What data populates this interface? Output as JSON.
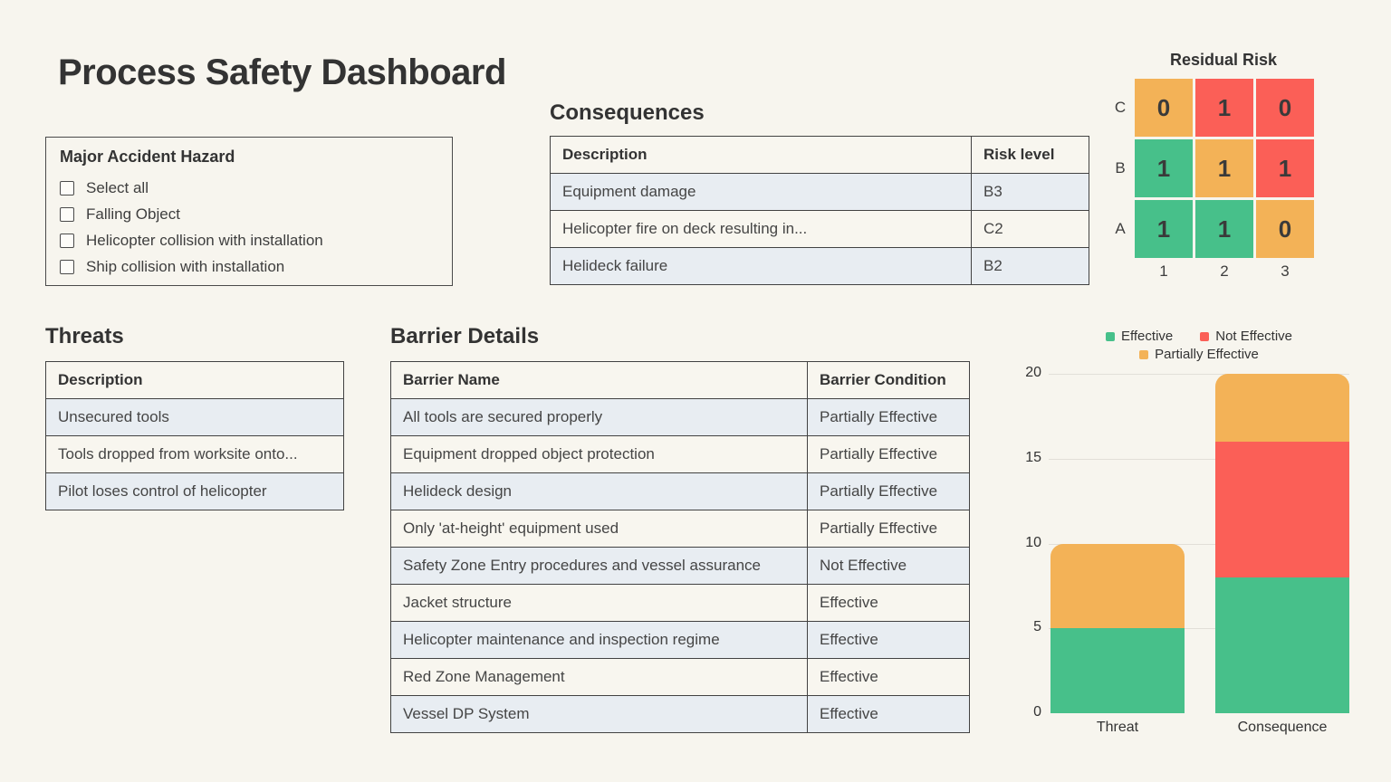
{
  "page": {
    "title": "Process Safety Dashboard"
  },
  "colors": {
    "green": "#47C08A",
    "red": "#FB5F57",
    "orange": "#F3B257",
    "alt_row": "#E8EDF2",
    "background": "#F7F5EE",
    "border": "#424242"
  },
  "hazard_panel": {
    "title": "Major Accident Hazard",
    "options": [
      "Select all",
      "Falling Object",
      "Helicopter collision with installation",
      "Ship collision with installation"
    ],
    "checked": [
      false,
      false,
      false,
      false
    ]
  },
  "consequences": {
    "title": "Consequences",
    "columns": [
      "Description",
      "Risk level"
    ],
    "rows": [
      [
        "Equipment damage",
        "B3"
      ],
      [
        "Helicopter fire on deck resulting in...",
        "C2"
      ],
      [
        "Helideck failure",
        "B2"
      ]
    ]
  },
  "threats": {
    "title": "Threats",
    "columns": [
      "Description"
    ],
    "rows": [
      [
        "Unsecured tools"
      ],
      [
        "Tools dropped from worksite onto..."
      ],
      [
        "Pilot loses control of helicopter"
      ]
    ]
  },
  "barriers": {
    "title": "Barrier Details",
    "columns": [
      "Barrier Name",
      "Barrier Condition"
    ],
    "rows": [
      [
        "All tools are secured properly",
        "Partially Effective"
      ],
      [
        "Equipment dropped object protection",
        "Partially Effective"
      ],
      [
        "Helideck design",
        "Partially Effective"
      ],
      [
        "Only 'at-height' equipment used",
        "Partially Effective"
      ],
      [
        "Safety Zone Entry procedures and vessel assurance",
        "Not Effective"
      ],
      [
        "Jacket structure",
        "Effective"
      ],
      [
        "Helicopter maintenance and inspection regime",
        "Effective"
      ],
      [
        "Red Zone Management",
        "Effective"
      ],
      [
        "Vessel DP System",
        "Effective"
      ]
    ]
  },
  "chart_data": [
    {
      "type": "heatmap",
      "title": "Residual Risk",
      "row_labels": [
        "C",
        "B",
        "A"
      ],
      "col_labels": [
        "1",
        "2",
        "3"
      ],
      "values": [
        [
          0,
          1,
          0
        ],
        [
          1,
          1,
          1
        ],
        [
          1,
          1,
          0
        ]
      ],
      "cell_colors": [
        [
          "orange",
          "red",
          "red"
        ],
        [
          "green",
          "orange",
          "red"
        ],
        [
          "green",
          "green",
          "orange"
        ]
      ]
    },
    {
      "type": "bar",
      "stacked": true,
      "categories": [
        "Threat",
        "Consequence"
      ],
      "series": [
        {
          "name": "Effective",
          "color": "#47C08A",
          "values": [
            5,
            8
          ]
        },
        {
          "name": "Not Effective",
          "color": "#FB5F57",
          "values": [
            0,
            8
          ]
        },
        {
          "name": "Partially Effective",
          "color": "#F3B257",
          "values": [
            5,
            4
          ]
        }
      ],
      "title": "",
      "xlabel": "",
      "ylabel": "",
      "ylim": [
        0,
        20
      ],
      "yticks": [
        0,
        5,
        10,
        15,
        20
      ],
      "grid": true,
      "legend_position": "top"
    }
  ]
}
